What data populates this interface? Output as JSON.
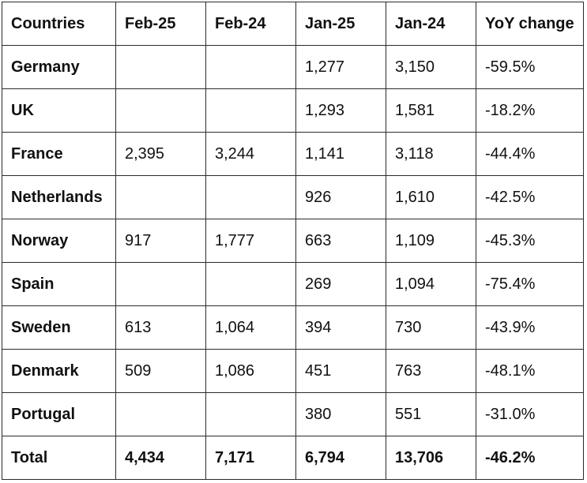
{
  "table": {
    "headers": [
      "Countries",
      "Feb-25",
      "Feb-24",
      "Jan-25",
      "Jan-24",
      "YoY change"
    ],
    "rows": [
      [
        "Germany",
        "",
        "",
        "1,277",
        "3,150",
        "-59.5%"
      ],
      [
        "UK",
        "",
        "",
        "1,293",
        "1,581",
        "-18.2%"
      ],
      [
        "France",
        "2,395",
        "3,244",
        "1,141",
        "3,118",
        "-44.4%"
      ],
      [
        "Netherlands",
        "",
        "",
        "926",
        "1,610",
        "-42.5%"
      ],
      [
        "Norway",
        "917",
        "1,777",
        "663",
        "1,109",
        "-45.3%"
      ],
      [
        "Spain",
        "",
        "",
        "269",
        "1,094",
        "-75.4%"
      ],
      [
        "Sweden",
        "613",
        "1,064",
        "394",
        "730",
        "-43.9%"
      ],
      [
        "Denmark",
        "509",
        "1,086",
        "451",
        "763",
        "-48.1%"
      ],
      [
        "Portugal",
        "",
        "",
        "380",
        "551",
        "-31.0%"
      ]
    ],
    "total": [
      "Total",
      "4,434",
      "7,171",
      "6,794",
      "13,706",
      "-46.2%"
    ]
  }
}
